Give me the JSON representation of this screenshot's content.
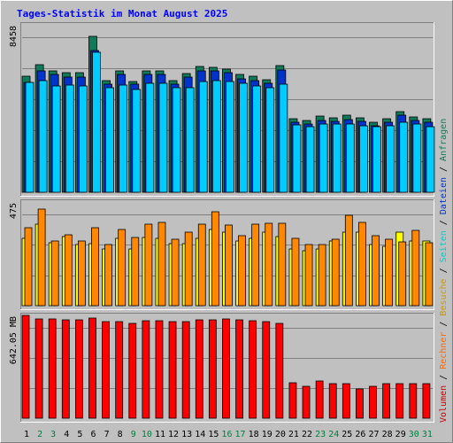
{
  "chart_data": {
    "type": "bar",
    "title": "Tages-Statistik im Monat August 2025",
    "x": [
      "1",
      "2",
      "3",
      "4",
      "5",
      "6",
      "7",
      "8",
      "9",
      "10",
      "11",
      "12",
      "13",
      "14",
      "15",
      "16",
      "17",
      "18",
      "19",
      "20",
      "21",
      "22",
      "23",
      "24",
      "25",
      "26",
      "27",
      "28",
      "29",
      "30",
      "31"
    ],
    "weekend_days": [
      "2",
      "3",
      "9",
      "10",
      "16",
      "17",
      "23",
      "24",
      "30",
      "31"
    ],
    "panels": [
      {
        "name": "requests",
        "max_label": "8458",
        "ylim": [
          0,
          9100
        ],
        "gridlines": 5,
        "series": [
          {
            "name": "Anfragen",
            "color": "#117a5a",
            "values": [
              6300,
              6950,
              6620,
              6500,
              6500,
              8458,
              6070,
              6600,
              6030,
              6610,
              6600,
              6070,
              6460,
              6820,
              6800,
              6700,
              6400,
              6300,
              6100,
              6900,
              4000,
              3900,
              4150,
              4050,
              4210,
              4060,
              3800,
              4000,
              4400,
              4100,
              4020
            ]
          },
          {
            "name": "Dateien",
            "color": "#0033cc",
            "values": [
              5980,
              6600,
              6400,
              6280,
              6250,
              7700,
              5850,
              6400,
              5850,
              6390,
              6380,
              5850,
              6240,
              6600,
              6600,
              6480,
              6160,
              6050,
              5900,
              6650,
              3800,
              3700,
              3900,
              3850,
              3950,
              3840,
              3600,
              3800,
              4200,
              3900,
              3820
            ]
          },
          {
            "name": "Seiten",
            "color": "#00ccff",
            "values": [
              5950,
              6080,
              5800,
              5840,
              5800,
              7600,
              5700,
              5840,
              5600,
              5910,
              5910,
              5700,
              5700,
              6000,
              6050,
              6030,
              5900,
              5800,
              5700,
              5850,
              3680,
              3540,
              3700,
              3700,
              3700,
              3620,
              3540,
              3620,
              3800,
              3720,
              3580
            ]
          }
        ]
      },
      {
        "name": "visits",
        "max_label": "475",
        "ylim": [
          0,
          510
        ],
        "gridlines": 3,
        "series": [
          {
            "name": "Besuche",
            "color": "#ffff00",
            "values": [
              330,
              400,
              310,
              340,
              300,
              305,
              280,
              330,
              280,
              335,
              330,
              305,
              305,
              330,
              375,
              360,
              320,
              330,
              360,
              340,
              280,
              270,
              280,
              320,
              360,
              360,
              300,
              290,
              360,
              320,
              320
            ]
          },
          {
            "name": "Rechner",
            "color": "#ff8800",
            "values": [
              385,
              475,
              320,
              350,
              320,
              385,
              300,
              375,
              335,
              400,
              410,
              325,
              360,
              400,
              460,
              395,
              345,
              400,
              405,
              405,
              330,
              300,
              300,
              325,
              445,
              410,
              345,
              325,
              315,
              370,
              310
            ]
          }
        ]
      },
      {
        "name": "volume",
        "max_label": "642.05 MB",
        "ylim": [
          0,
          642.05
        ],
        "gridlines": 3,
        "series": [
          {
            "name": "Volumen",
            "color": "#ff0000",
            "values": [
              642.05,
              618,
              618,
              614,
              612,
              624,
              602,
              604,
              594,
              609,
              608,
              603,
              606,
              614,
              614,
              620,
              616,
              608,
              606,
              594,
              222,
              200,
              230,
              218,
              214,
              180,
              200,
              216,
              218,
              218,
              218
            ]
          }
        ]
      }
    ],
    "legend": {
      "placement": "right-vertical",
      "items": [
        {
          "text": "Volumen",
          "color": "#cc0000"
        },
        {
          "text": " / ",
          "color": "#000000"
        },
        {
          "text": "Rechner",
          "color": "#ff6600"
        },
        {
          "text": " / ",
          "color": "#000000"
        },
        {
          "text": "Besuche",
          "color": "#cc9900"
        },
        {
          "text": " / ",
          "color": "#000000"
        },
        {
          "text": "Seiten",
          "color": "#00cccc"
        },
        {
          "text": " / ",
          "color": "#000000"
        },
        {
          "text": "Dateien",
          "color": "#0033cc"
        },
        {
          "text": " / ",
          "color": "#000000"
        },
        {
          "text": "Anfragen",
          "color": "#117a5a"
        }
      ]
    },
    "colors": {
      "title": "#0000ff",
      "weekday_label": "#000000",
      "weekend_label": "#008040",
      "plot_bg": "#c0c0c0",
      "grid": "#808080"
    }
  }
}
